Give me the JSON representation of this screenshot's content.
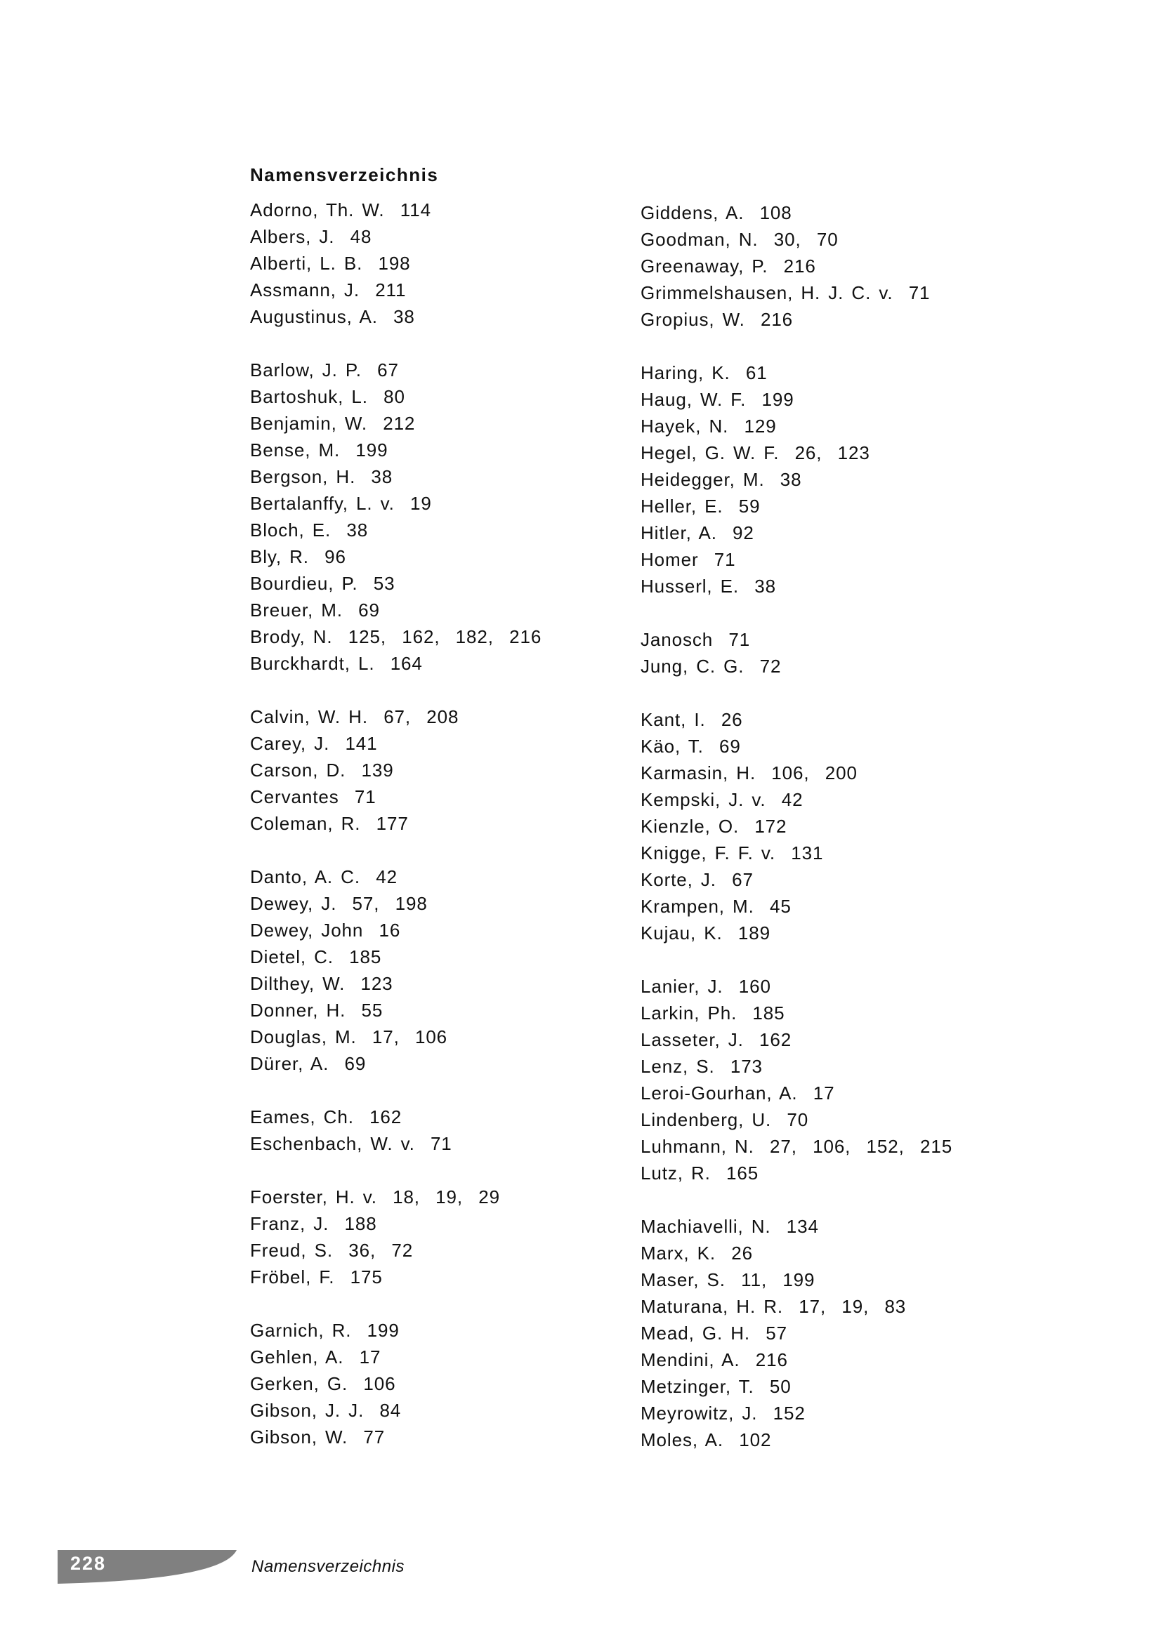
{
  "title": "Namensverzeichnis",
  "left_column": [
    [
      "Adorno, Th. W.  114",
      "Albers, J.  48",
      "Alberti, L. B.  198",
      "Assmann, J.  211",
      "Augustinus, A.  38"
    ],
    [
      "Barlow, J. P.  67",
      "Bartoshuk, L.  80",
      "Benjamin, W.  212",
      "Bense, M.  199",
      "Bergson, H.  38",
      "Bertalanffy, L. v.  19",
      "Bloch, E.  38",
      "Bly, R.  96",
      "Bourdieu, P.  53",
      "Breuer, M.  69",
      "Brody, N.  125,  162,  182,  216",
      "Burckhardt, L.  164"
    ],
    [
      "Calvin, W. H.  67,  208",
      "Carey, J.  141",
      "Carson, D.  139",
      "Cervantes  71",
      "Coleman, R.  177"
    ],
    [
      "Danto, A. C.  42",
      "Dewey, J.  57,  198",
      "Dewey, John  16",
      "Dietel, C.  185",
      "Dilthey, W.  123",
      "Donner, H.  55",
      "Douglas, M.  17,  106",
      "Dürer, A.  69"
    ],
    [
      "Eames, Ch.  162",
      "Eschenbach, W. v.  71"
    ],
    [
      "Foerster, H. v.  18,  19,  29",
      "Franz, J.  188",
      "Freud, S.  36,  72",
      "Fröbel, F.  175"
    ],
    [
      "Garnich, R.  199",
      "Gehlen, A.  17",
      "Gerken, G.  106",
      "Gibson, J. J.  84",
      "Gibson, W.  77"
    ]
  ],
  "right_column": [
    [
      "Giddens, A.  108",
      "Goodman, N.  30,  70",
      "Greenaway, P.  216",
      "Grimmelshausen, H. J. C. v.  71",
      "Gropius, W.  216"
    ],
    [
      "Haring, K.  61",
      "Haug, W. F.  199",
      "Hayek, N.  129",
      "Hegel, G. W. F.  26,  123",
      "Heidegger, M.  38",
      "Heller, E.  59",
      "Hitler, A.  92",
      "Homer  71",
      "Husserl, E.  38"
    ],
    [
      "Janosch  71",
      "Jung, C. G.  72"
    ],
    [
      "Kant, I.  26",
      "Käo, T.  69",
      "Karmasin, H.  106,  200",
      "Kempski, J. v.  42",
      "Kienzle, O.  172",
      "Knigge, F. F. v.  131",
      "Korte, J.  67",
      "Krampen, M.  45",
      "Kujau, K.  189"
    ],
    [
      "Lanier, J.  160",
      "Larkin, Ph.  185",
      "Lasseter, J.  162",
      "Lenz, S.  173",
      "Leroi-Gourhan, A.  17",
      "Lindenberg, U.  70",
      "Luhmann, N.  27,  106,  152,  215",
      "Lutz, R.  165"
    ],
    [
      "Machiavelli, N.  134",
      "Marx, K.  26",
      "Maser, S.  11,  199",
      "Maturana, H. R.  17,  19,  83",
      "Mead, G. H.  57",
      "Mendini, A.  216",
      "Metzinger, T.  50",
      "Meyrowitz, J.  152",
      "Moles, A.  102"
    ]
  ],
  "footer": {
    "page_number": "228",
    "running_head": "Namensverzeichnis",
    "band_color": "#808080"
  }
}
